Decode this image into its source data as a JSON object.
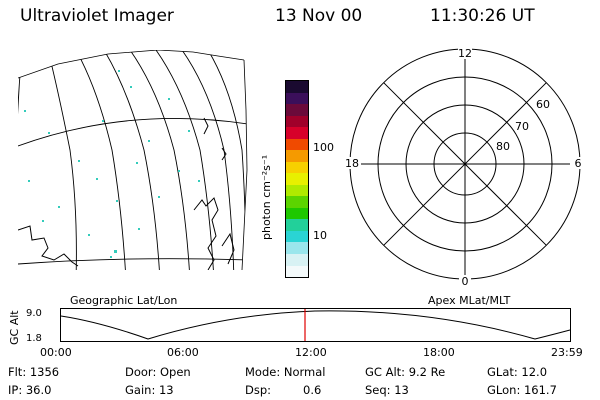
{
  "header": {
    "title": "Ultraviolet Imager",
    "date": "13 Nov 00",
    "time": "11:30:26 UT"
  },
  "geo_panel": {
    "label": "Geographic Lat/Lon"
  },
  "colorbar": {
    "label": "photon cm⁻²s⁻¹",
    "tick_labels": [
      "100",
      "10"
    ],
    "colors": [
      "#1a0a30",
      "#3b0f5a",
      "#6b0a3a",
      "#a0002a",
      "#d7002a",
      "#f04a00",
      "#f59a00",
      "#f7d000",
      "#e8f000",
      "#b0ea00",
      "#5cd400",
      "#1ec800",
      "#22d09a",
      "#2ad4d4",
      "#9ae6ec",
      "#d8f2f4",
      "#f4fafb"
    ]
  },
  "polar_panel": {
    "label": "Apex MLat/MLT",
    "mlt_labels": {
      "top": "12",
      "left": "18",
      "right": "6",
      "bottom": "0"
    },
    "lat_labels": [
      "60",
      "70",
      "80"
    ]
  },
  "alt_plot": {
    "ylabel": "GC Alt",
    "yticks": [
      "9.0",
      "1.8"
    ],
    "xticks": [
      "00:00",
      "06:00",
      "12:00",
      "18:00",
      "23:59"
    ],
    "marker_time_hours": 11.508
  },
  "stats": {
    "row1": {
      "flt": "Flt: 1356",
      "door": "Door: Open",
      "mode": "Mode: Normal",
      "gcalt": "GC Alt: 9.2 Re",
      "glat": "GLat: 12.0"
    },
    "row2": {
      "ip": "IP: 36.0",
      "gain": "Gain: 13",
      "dsp_label": "Dsp:",
      "dsp_value": "0.6",
      "seq": "Seq: 13",
      "glon": "GLon: 161.7"
    }
  }
}
